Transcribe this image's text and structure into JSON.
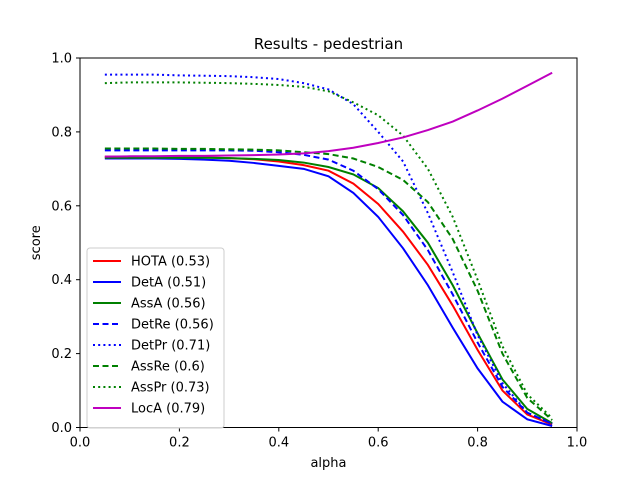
{
  "chart_data": {
    "type": "line",
    "title": "Results - pedestrian",
    "xlabel": "alpha",
    "ylabel": "score",
    "xlim": [
      0.0,
      1.0
    ],
    "ylim": [
      0.0,
      1.0
    ],
    "xticks": [
      "0.0",
      "0.2",
      "0.4",
      "0.6",
      "0.8",
      "1.0"
    ],
    "yticks": [
      "0.0",
      "0.2",
      "0.4",
      "0.6",
      "0.8",
      "1.0"
    ],
    "grid": false,
    "legend_position": "lower-left",
    "x": [
      0.05,
      0.1,
      0.15,
      0.2,
      0.25,
      0.3,
      0.35,
      0.4,
      0.45,
      0.5,
      0.55,
      0.6,
      0.65,
      0.7,
      0.75,
      0.8,
      0.85,
      0.9,
      0.95
    ],
    "series": [
      {
        "name": "HOTA (0.53)",
        "color": "#ff0000",
        "dash": "solid",
        "values": [
          0.733,
          0.733,
          0.733,
          0.732,
          0.731,
          0.729,
          0.726,
          0.72,
          0.71,
          0.695,
          0.66,
          0.605,
          0.53,
          0.44,
          0.33,
          0.21,
          0.1,
          0.035,
          0.008
        ]
      },
      {
        "name": "DetA (0.51)",
        "color": "#0000ff",
        "dash": "solid",
        "values": [
          0.728,
          0.728,
          0.728,
          0.727,
          0.725,
          0.722,
          0.716,
          0.708,
          0.7,
          0.68,
          0.635,
          0.57,
          0.485,
          0.385,
          0.27,
          0.16,
          0.07,
          0.022,
          0.004
        ]
      },
      {
        "name": "AssA (0.56)",
        "color": "#008000",
        "dash": "solid",
        "values": [
          0.73,
          0.73,
          0.73,
          0.73,
          0.73,
          0.729,
          0.727,
          0.724,
          0.717,
          0.705,
          0.685,
          0.648,
          0.585,
          0.5,
          0.385,
          0.255,
          0.13,
          0.05,
          0.012
        ]
      },
      {
        "name": "DetRe (0.56)",
        "color": "#0000ff",
        "dash": "dashed",
        "values": [
          0.75,
          0.75,
          0.75,
          0.75,
          0.75,
          0.75,
          0.749,
          0.745,
          0.738,
          0.725,
          0.695,
          0.645,
          0.575,
          0.48,
          0.36,
          0.23,
          0.11,
          0.04,
          0.01
        ]
      },
      {
        "name": "DetPr (0.71)",
        "color": "#0000ff",
        "dash": "dotted",
        "values": [
          0.955,
          0.955,
          0.955,
          0.953,
          0.952,
          0.951,
          0.948,
          0.943,
          0.932,
          0.915,
          0.875,
          0.8,
          0.72,
          0.58,
          0.42,
          0.25,
          0.12,
          0.04,
          0.01
        ]
      },
      {
        "name": "AssRe (0.6)",
        "color": "#008000",
        "dash": "dashed",
        "values": [
          0.755,
          0.755,
          0.755,
          0.754,
          0.754,
          0.753,
          0.752,
          0.75,
          0.745,
          0.74,
          0.728,
          0.705,
          0.67,
          0.61,
          0.51,
          0.37,
          0.2,
          0.08,
          0.02
        ]
      },
      {
        "name": "AssPr (0.73)",
        "color": "#008000",
        "dash": "dotted",
        "values": [
          0.932,
          0.934,
          0.934,
          0.934,
          0.933,
          0.932,
          0.93,
          0.927,
          0.922,
          0.91,
          0.88,
          0.845,
          0.79,
          0.7,
          0.57,
          0.4,
          0.22,
          0.09,
          0.025
        ]
      },
      {
        "name": "LocA (0.79)",
        "color": "#bf00bf",
        "dash": "solid",
        "values": [
          0.733,
          0.734,
          0.734,
          0.735,
          0.735,
          0.736,
          0.737,
          0.739,
          0.742,
          0.748,
          0.757,
          0.77,
          0.785,
          0.805,
          0.828,
          0.858,
          0.89,
          0.925,
          0.96
        ]
      }
    ]
  }
}
